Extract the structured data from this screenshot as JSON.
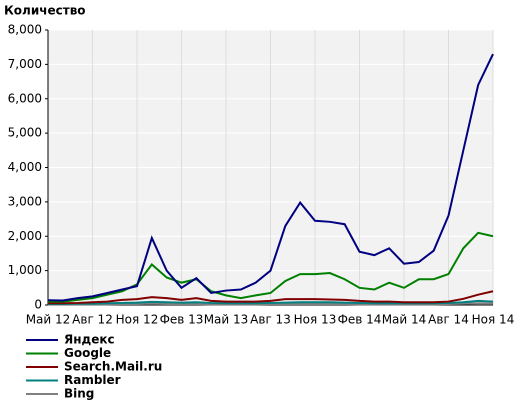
{
  "chart_data": {
    "type": "line",
    "title": "Количество",
    "categories": [
      "Май 12",
      null,
      null,
      "Авг 12",
      null,
      null,
      "Ноя 12",
      null,
      null,
      "Фев 13",
      null,
      null,
      "Май 13",
      null,
      null,
      "Авг 13",
      null,
      null,
      "Ноя 13",
      null,
      null,
      "Фев 14",
      null,
      null,
      "Май 14",
      null,
      null,
      "Авг 14",
      null,
      null,
      "Ноя 14"
    ],
    "series": [
      {
        "name": "Яндекс",
        "color": "#000080",
        "values": [
          140,
          130,
          200,
          250,
          350,
          450,
          550,
          1950,
          1000,
          500,
          780,
          350,
          420,
          450,
          650,
          1000,
          2300,
          2980,
          2450,
          2420,
          2350,
          1550,
          1450,
          1650,
          1200,
          1250,
          1580,
          2600,
          4500,
          6400,
          7300
        ]
      },
      {
        "name": "Google",
        "color": "#008000",
        "values": [
          100,
          100,
          150,
          200,
          300,
          400,
          600,
          1180,
          800,
          650,
          750,
          400,
          280,
          200,
          280,
          350,
          700,
          900,
          900,
          930,
          750,
          500,
          450,
          650,
          500,
          750,
          750,
          900,
          1650,
          2100,
          2000
        ]
      },
      {
        "name": "Search.Mail.ru",
        "color": "#800000",
        "values": [
          50,
          50,
          60,
          80,
          100,
          150,
          170,
          230,
          200,
          150,
          200,
          120,
          100,
          100,
          100,
          120,
          170,
          170,
          170,
          160,
          150,
          120,
          100,
          100,
          80,
          80,
          80,
          100,
          180,
          300,
          400
        ]
      },
      {
        "name": "Rambler",
        "color": "#008080",
        "values": [
          30,
          30,
          40,
          40,
          50,
          60,
          70,
          90,
          80,
          70,
          80,
          60,
          50,
          50,
          50,
          60,
          70,
          80,
          80,
          80,
          70,
          60,
          50,
          50,
          50,
          50,
          50,
          60,
          80,
          120,
          100
        ]
      },
      {
        "name": "Bing",
        "color": "#808080",
        "values": [
          20,
          20,
          20,
          20,
          20,
          30,
          30,
          40,
          30,
          30,
          30,
          20,
          20,
          20,
          20,
          30,
          30,
          30,
          30,
          30,
          30,
          20,
          20,
          20,
          20,
          20,
          20,
          30,
          40,
          50,
          50
        ]
      }
    ],
    "ylim": [
      0,
      8000
    ],
    "yticks": [
      0,
      {
        "value": 1000,
        "label": "1,000"
      },
      {
        "value": 2000,
        "label": "2,000"
      },
      {
        "value": 3000,
        "label": "3,000"
      },
      {
        "value": 4000,
        "label": "4,000"
      },
      {
        "value": 5000,
        "label": "5,000"
      },
      {
        "value": 6000,
        "label": "6,000"
      },
      {
        "value": 7000,
        "label": "7,000"
      },
      {
        "value": 8000,
        "label": "8,000"
      }
    ],
    "grid": true,
    "legend": "bottom"
  }
}
